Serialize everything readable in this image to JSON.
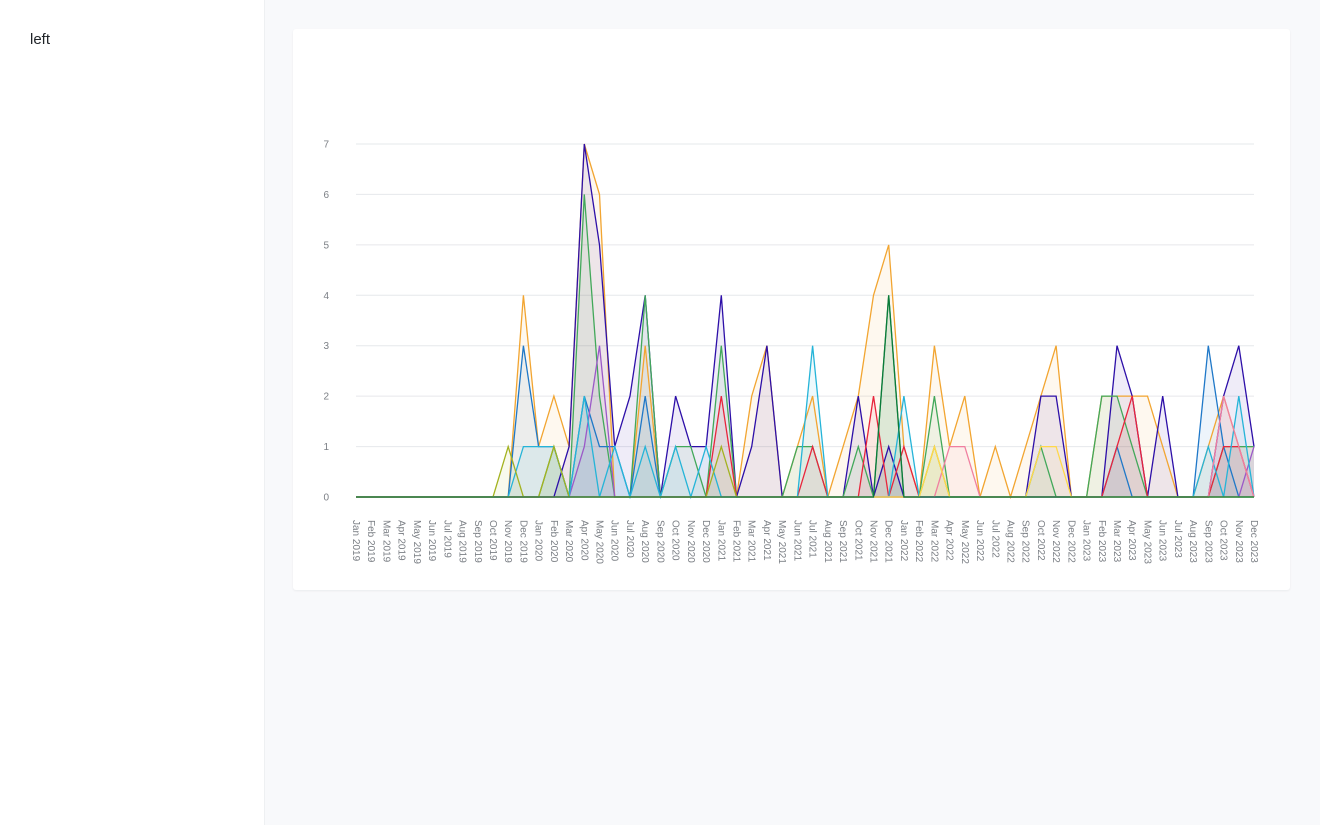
{
  "sidebar": {
    "label": "left"
  },
  "chart_data": {
    "type": "area",
    "title": "",
    "xlabel": "",
    "ylabel": "",
    "ylim": [
      0,
      7
    ],
    "yticks": [
      0,
      1,
      2,
      3,
      4,
      5,
      6,
      7
    ],
    "grid": true,
    "legend": "none",
    "x": [
      "Jan 2019",
      "Feb 2019",
      "Mar 2019",
      "Apr 2019",
      "May 2019",
      "Jun 2019",
      "Jul 2019",
      "Aug 2019",
      "Sep 2019",
      "Oct 2019",
      "Nov 2019",
      "Dec 2019",
      "Jan 2020",
      "Feb 2020",
      "Mar 2020",
      "Apr 2020",
      "May 2020",
      "Jun 2020",
      "Jul 2020",
      "Aug 2020",
      "Sep 2020",
      "Oct 2020",
      "Nov 2020",
      "Dec 2020",
      "Jan 2021",
      "Feb 2021",
      "Mar 2021",
      "Apr 2021",
      "May 2021",
      "Jun 2021",
      "Jul 2021",
      "Aug 2021",
      "Sep 2021",
      "Oct 2021",
      "Nov 2021",
      "Dec 2021",
      "Jan 2022",
      "Feb 2022",
      "Mar 2022",
      "Apr 2022",
      "May 2022",
      "Jun 2022",
      "Jul 2022",
      "Aug 2022",
      "Sep 2022",
      "Oct 2022",
      "Nov 2022",
      "Dec 2022",
      "Jan 2023",
      "Feb 2023",
      "Mar 2023",
      "Apr 2023",
      "May 2023",
      "Jun 2023",
      "Jul 2023",
      "Aug 2023",
      "Sep 2023",
      "Oct 2023",
      "Nov 2023",
      "Dec 2023"
    ],
    "series": [
      {
        "color": "#f2a531",
        "values": [
          0,
          0,
          0,
          0,
          0,
          0,
          0,
          0,
          0,
          0,
          0,
          4,
          1,
          2,
          1,
          7,
          6,
          0,
          0,
          3,
          0,
          0,
          0,
          0,
          0,
          0,
          2,
          3,
          0,
          1,
          2,
          0,
          1,
          2,
          4,
          5,
          1,
          0,
          3,
          1,
          2,
          0,
          1,
          0,
          1,
          2,
          3,
          0,
          0,
          2,
          2,
          2,
          2,
          1,
          0,
          0,
          1,
          2,
          1,
          1
        ]
      },
      {
        "color": "#2d0fa8",
        "values": [
          0,
          0,
          0,
          0,
          0,
          0,
          0,
          0,
          0,
          0,
          0,
          0,
          0,
          0,
          1,
          7,
          5,
          1,
          2,
          4,
          0,
          2,
          1,
          1,
          4,
          0,
          1,
          3,
          0,
          0,
          0,
          0,
          0,
          2,
          0,
          1,
          0,
          0,
          0,
          0,
          0,
          0,
          0,
          0,
          0,
          2,
          2,
          0,
          0,
          0,
          3,
          2,
          0,
          2,
          0,
          0,
          0,
          2,
          3,
          1
        ]
      },
      {
        "color": "#42a85a",
        "values": [
          0,
          0,
          0,
          0,
          0,
          0,
          0,
          0,
          0,
          0,
          0,
          0,
          0,
          1,
          0,
          6,
          2,
          0,
          0,
          4,
          0,
          1,
          1,
          0,
          3,
          0,
          0,
          0,
          0,
          1,
          1,
          0,
          0,
          1,
          0,
          4,
          0,
          0,
          2,
          0,
          0,
          0,
          0,
          0,
          0,
          1,
          0,
          0,
          0,
          2,
          2,
          1,
          0,
          0,
          0,
          0,
          0,
          1,
          1,
          1
        ]
      },
      {
        "color": "#1f78c8",
        "values": [
          0,
          0,
          0,
          0,
          0,
          0,
          0,
          0,
          0,
          0,
          0,
          3,
          1,
          1,
          0,
          2,
          1,
          1,
          0,
          2,
          0,
          0,
          0,
          0,
          0,
          0,
          0,
          0,
          0,
          0,
          0,
          0,
          0,
          0,
          0,
          0,
          0,
          0,
          0,
          0,
          0,
          0,
          0,
          0,
          0,
          0,
          0,
          0,
          0,
          0,
          1,
          0,
          0,
          0,
          0,
          0,
          3,
          1,
          0,
          0
        ]
      },
      {
        "color": "#9b59c8",
        "values": [
          0,
          0,
          0,
          0,
          0,
          0,
          0,
          0,
          0,
          0,
          0,
          0,
          0,
          0,
          0,
          1,
          3,
          0,
          0,
          0,
          0,
          0,
          0,
          0,
          0,
          0,
          0,
          0,
          0,
          0,
          0,
          0,
          0,
          0,
          0,
          0,
          0,
          0,
          0,
          0,
          0,
          0,
          0,
          0,
          0,
          0,
          0,
          0,
          0,
          0,
          0,
          0,
          0,
          0,
          0,
          0,
          0,
          0,
          0,
          1
        ]
      },
      {
        "color": "#e8253c",
        "values": [
          0,
          0,
          0,
          0,
          0,
          0,
          0,
          0,
          0,
          0,
          0,
          0,
          0,
          0,
          0,
          0,
          0,
          0,
          0,
          0,
          0,
          0,
          0,
          0,
          2,
          0,
          0,
          0,
          0,
          0,
          1,
          0,
          0,
          0,
          2,
          0,
          1,
          0,
          0,
          0,
          0,
          0,
          0,
          0,
          0,
          0,
          0,
          0,
          0,
          0,
          1,
          2,
          0,
          0,
          0,
          0,
          0,
          1,
          1,
          0
        ]
      },
      {
        "color": "#25b4d8",
        "values": [
          0,
          0,
          0,
          0,
          0,
          0,
          0,
          0,
          0,
          0,
          0,
          1,
          1,
          1,
          0,
          2,
          0,
          1,
          0,
          1,
          0,
          1,
          0,
          1,
          0,
          0,
          0,
          0,
          0,
          0,
          3,
          0,
          0,
          0,
          0,
          0,
          2,
          0,
          0,
          0,
          0,
          0,
          0,
          0,
          0,
          0,
          0,
          0,
          0,
          0,
          0,
          0,
          0,
          0,
          0,
          0,
          1,
          0,
          2,
          0
        ]
      },
      {
        "color": "#a3b21f",
        "values": [
          0,
          0,
          0,
          0,
          0,
          0,
          0,
          0,
          0,
          0,
          1,
          0,
          0,
          1,
          0,
          0,
          0,
          0,
          0,
          0,
          0,
          0,
          0,
          0,
          1,
          0,
          0,
          0,
          0,
          0,
          0,
          0,
          0,
          0,
          0,
          0,
          0,
          0,
          1,
          0,
          0,
          0,
          0,
          0,
          0,
          0,
          0,
          0,
          0,
          0,
          0,
          0,
          0,
          0,
          0,
          0,
          0,
          0,
          0,
          0
        ]
      },
      {
        "color": "#f07fa0",
        "values": [
          0,
          0,
          0,
          0,
          0,
          0,
          0,
          0,
          0,
          0,
          0,
          0,
          0,
          0,
          0,
          0,
          0,
          0,
          0,
          0,
          0,
          0,
          0,
          0,
          0,
          0,
          0,
          0,
          0,
          0,
          0,
          0,
          0,
          0,
          0,
          0,
          0,
          0,
          0,
          1,
          1,
          0,
          0,
          0,
          0,
          0,
          0,
          0,
          0,
          0,
          0,
          0,
          0,
          0,
          0,
          0,
          0,
          2,
          1,
          0
        ]
      },
      {
        "color": "#ffd84a",
        "values": [
          0,
          0,
          0,
          0,
          0,
          0,
          0,
          0,
          0,
          0,
          0,
          0,
          0,
          0,
          0,
          0,
          0,
          0,
          0,
          0,
          0,
          0,
          0,
          0,
          0,
          0,
          0,
          0,
          0,
          0,
          0,
          0,
          0,
          0,
          0,
          0,
          0,
          0,
          1,
          0,
          0,
          0,
          0,
          0,
          0,
          1,
          1,
          0,
          0,
          0,
          0,
          0,
          0,
          0,
          0,
          0,
          0,
          0,
          0,
          0
        ]
      },
      {
        "color": "#0a7a3a",
        "values": [
          0,
          0,
          0,
          0,
          0,
          0,
          0,
          0,
          0,
          0,
          0,
          0,
          0,
          0,
          0,
          0,
          0,
          0,
          0,
          0,
          0,
          0,
          0,
          0,
          0,
          0,
          0,
          0,
          0,
          0,
          0,
          0,
          0,
          0,
          0,
          4,
          0,
          0,
          0,
          0,
          0,
          0,
          0,
          0,
          0,
          0,
          0,
          0,
          0,
          0,
          0,
          0,
          0,
          0,
          0,
          0,
          0,
          0,
          0,
          0
        ]
      }
    ]
  }
}
